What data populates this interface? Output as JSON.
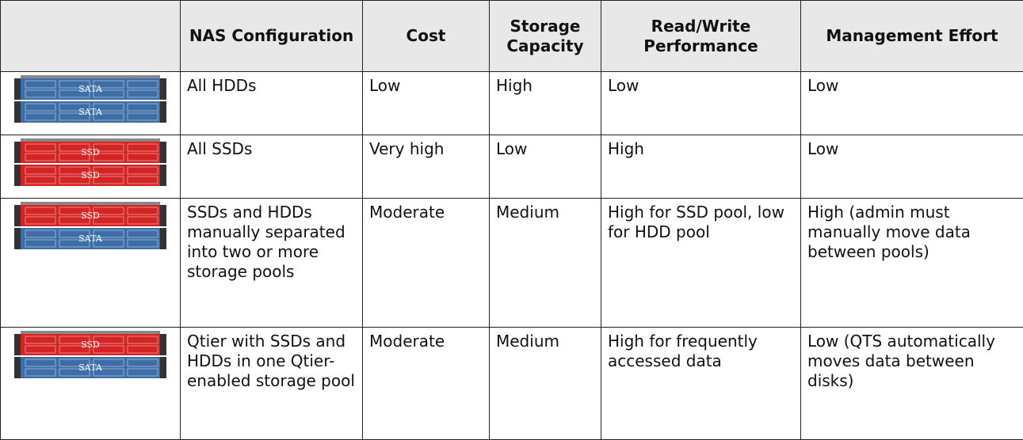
{
  "table": {
    "headers": [
      "",
      "NAS Configuration",
      "Cost",
      "Storage Capacity",
      "Read/Write Performance",
      "Management Effort"
    ],
    "rows": [
      {
        "image": [
          {
            "label": "SATA",
            "color": "#3d6ea8"
          },
          {
            "label": "SATA",
            "color": "#3d6ea8"
          }
        ],
        "cells": [
          "All HDDs",
          "Low",
          "High",
          "Low",
          "Low"
        ]
      },
      {
        "image": [
          {
            "label": "SSD",
            "color": "#d42424"
          },
          {
            "label": "SSD",
            "color": "#d42424"
          }
        ],
        "cells": [
          "All SSDs",
          "Very high",
          "Low",
          "High",
          "Low"
        ]
      },
      {
        "image": [
          {
            "label": "SSD",
            "color": "#d42424"
          },
          {
            "label": "SATA",
            "color": "#3d6ea8"
          }
        ],
        "cells": [
          "SSDs and HDDs manually separated into two or more storage pools",
          "Moderate",
          "Medium",
          "High for SSD pool, low for HDD pool",
          "High (admin must manually move data between pools)"
        ]
      },
      {
        "image": [
          {
            "label": "SSD",
            "color": "#d42424"
          },
          {
            "label": "SATA",
            "color": "#3d6ea8"
          }
        ],
        "cells": [
          "Qtier with SSDs and HDDs in one Qtier-enabled storage pool",
          "Moderate",
          "Medium",
          "High for frequently accessed data",
          "Low (QTS automatically moves data between disks)"
        ]
      }
    ]
  }
}
